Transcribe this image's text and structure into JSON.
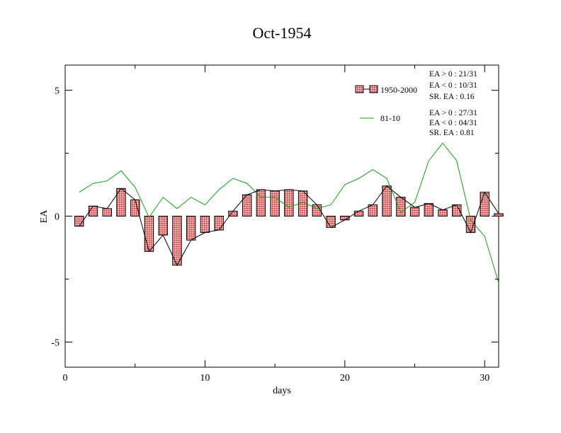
{
  "chart_data": {
    "type": "bar",
    "title": "Oct-1954",
    "xlabel": "days",
    "ylabel": "EA",
    "xlim": [
      0,
      31
    ],
    "ylim": [
      -6,
      6
    ],
    "xticks": [
      0,
      10,
      20,
      30
    ],
    "yticks": [
      -5,
      0,
      5
    ],
    "xtick_labels": [
      "0",
      "10",
      "20",
      "30"
    ],
    "ytick_labels": [
      "-5",
      "0",
      "5"
    ],
    "grid": false,
    "legend_position": "top-right",
    "x": [
      1,
      2,
      3,
      4,
      5,
      6,
      7,
      8,
      9,
      10,
      11,
      12,
      13,
      14,
      15,
      16,
      17,
      18,
      19,
      20,
      21,
      22,
      23,
      24,
      25,
      26,
      27,
      28,
      29,
      30,
      31
    ],
    "series": [
      {
        "name": "1950-2000",
        "kind": "bar+line",
        "color": "#e06666",
        "values": [
          -0.4,
          0.4,
          0.3,
          1.1,
          0.65,
          -1.4,
          -0.75,
          -1.95,
          -0.95,
          -0.65,
          -0.55,
          0.2,
          0.85,
          1.05,
          1.0,
          1.05,
          1.0,
          0.45,
          -0.45,
          -0.15,
          0.2,
          0.45,
          1.2,
          0.75,
          0.35,
          0.5,
          0.25,
          0.45,
          -0.65,
          0.95,
          0.1
        ]
      },
      {
        "name": "81-10",
        "kind": "line",
        "color": "#1a9a1a",
        "values": [
          0.95,
          1.3,
          1.4,
          1.8,
          1.15,
          -0.05,
          0.75,
          0.3,
          0.75,
          0.45,
          1.05,
          1.5,
          1.3,
          0.75,
          0.75,
          0.35,
          0.55,
          0.3,
          0.45,
          1.25,
          1.5,
          1.85,
          1.5,
          0.15,
          0.55,
          2.2,
          2.9,
          2.2,
          -0.15,
          -0.8,
          -2.65
        ]
      }
    ],
    "annotations": {
      "series1_stats": [
        "EA > 0 : 21/31",
        "EA < 0 : 10/31",
        "SR. EA :  0.16"
      ],
      "series2_stats": [
        "EA > 0 : 27/31",
        "EA < 0 : 04/31",
        "SR. EA :  0.81"
      ]
    }
  }
}
